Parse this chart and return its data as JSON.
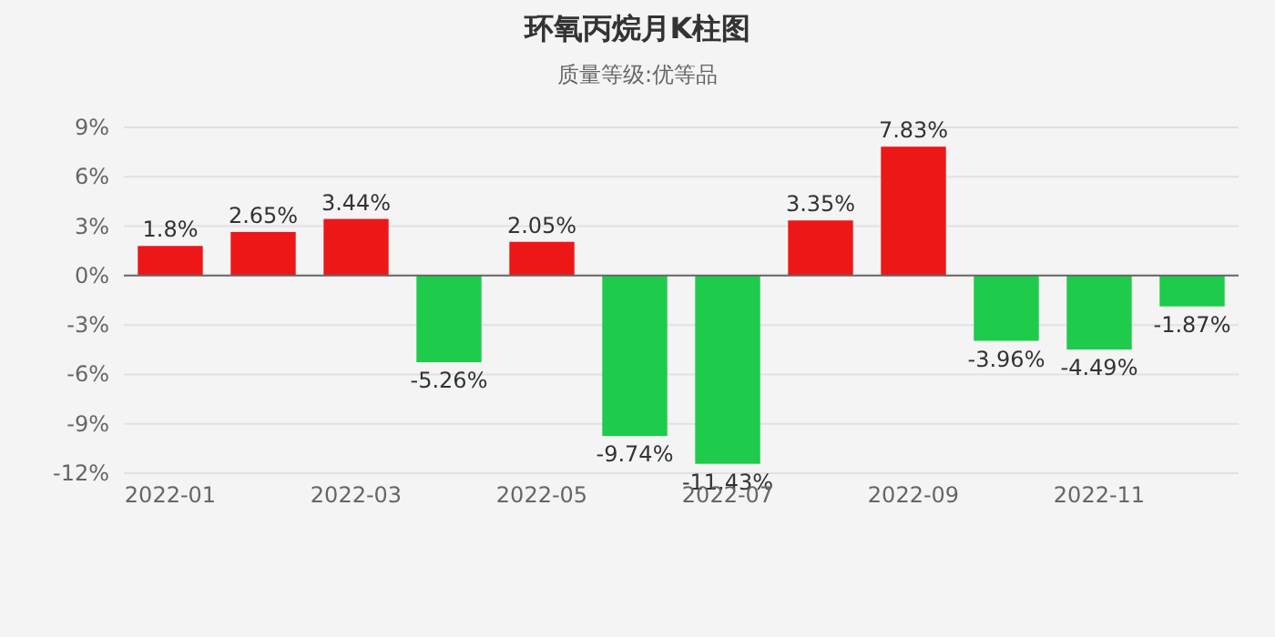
{
  "chart_data": {
    "type": "bar",
    "title": "环氧丙烷月K柱图",
    "subtitle": "质量等级:优等品",
    "categories": [
      "2022-01",
      null,
      "2022-03",
      null,
      "2022-05",
      null,
      "2022-07",
      null,
      "2022-09",
      null,
      "2022-11",
      null
    ],
    "values": [
      1.8,
      2.65,
      3.44,
      -5.26,
      2.05,
      -9.74,
      -11.43,
      3.35,
      7.83,
      -3.96,
      -4.49,
      -1.87
    ],
    "colors": [
      "#ee1717",
      "#ee1717",
      "#ee1717",
      "#1ecb4a",
      "#ee1717",
      "#1ecb4a",
      "#1ecb4a",
      "#ee1717",
      "#ee1717",
      "#1ecb4a",
      "#1ecb4a",
      "#1ecb4a"
    ],
    "value_labels": [
      "1.8%",
      "2.65%",
      "3.44%",
      "-5.26%",
      "2.05%",
      "-9.74%",
      "-11.43%",
      "3.35%",
      "7.83%",
      "-3.96%",
      "-4.49%",
      "-1.87%"
    ],
    "ylim": [
      -12,
      9
    ],
    "yticks": [
      {
        "value": -12,
        "label": "-12%"
      },
      {
        "value": -9,
        "label": "-9%"
      },
      {
        "value": -6,
        "label": "-6%"
      },
      {
        "value": -3,
        "label": "-3%"
      },
      {
        "value": 0,
        "label": "0%"
      },
      {
        "value": 3,
        "label": "3%"
      },
      {
        "value": 6,
        "label": "6%"
      },
      {
        "value": 9,
        "label": "9%"
      }
    ],
    "grid": "y"
  }
}
